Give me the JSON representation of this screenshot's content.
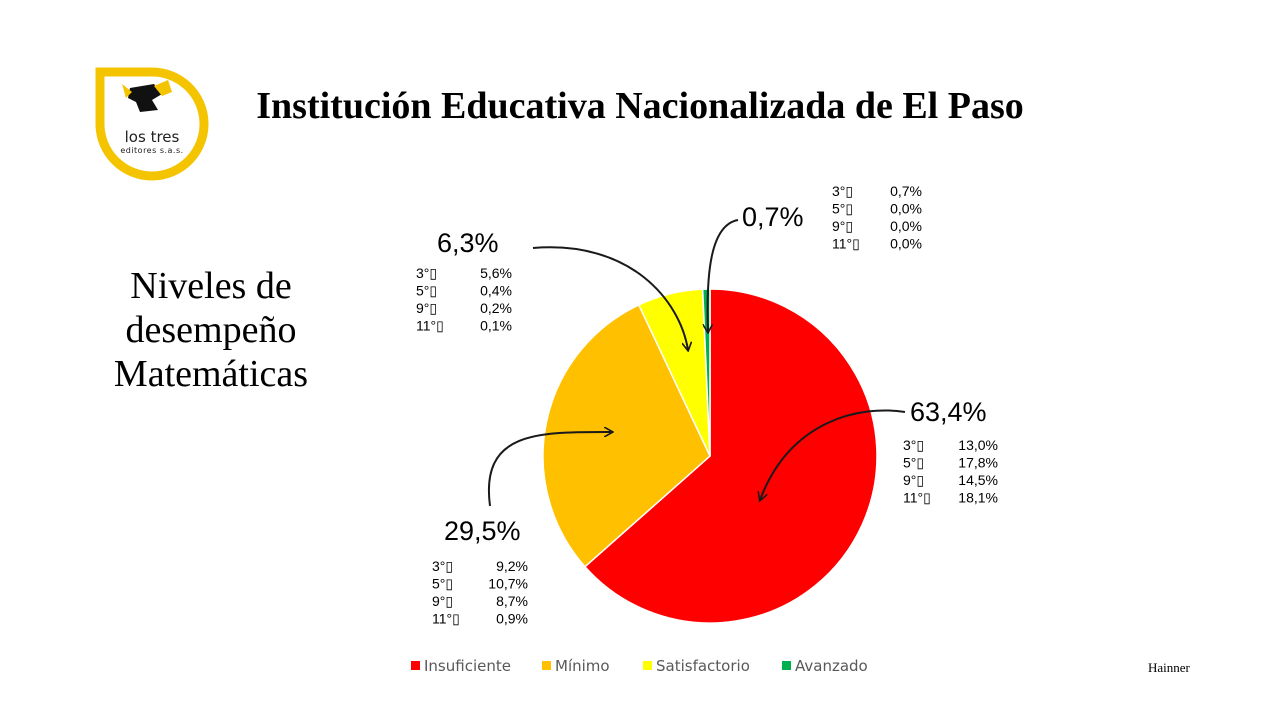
{
  "logo": {
    "line1": "los tres",
    "line2": "editores s.a.s."
  },
  "title": "Institución Educativa Nacionalizada de El Paso",
  "subtitle": "Niveles de desempeño Matemáticas",
  "credit": "Hainner",
  "chart_data": {
    "type": "pie",
    "slices": [
      {
        "name": "Insuficiente",
        "value": 63.4,
        "label": "63,4%",
        "color": "#ff0000",
        "breakdown": [
          [
            "3°▯",
            "13,0%"
          ],
          [
            "5°▯",
            "17,8%"
          ],
          [
            "9°▯",
            "14,5%"
          ],
          [
            "11°▯",
            "18,1%"
          ]
        ]
      },
      {
        "name": "Mínimo",
        "value": 29.5,
        "label": "29,5%",
        "color": "#ffc000",
        "breakdown": [
          [
            "3°▯",
            "9,2%"
          ],
          [
            "5°▯",
            "10,7%"
          ],
          [
            "9°▯",
            "8,7%"
          ],
          [
            "11°▯",
            "0,9%"
          ]
        ]
      },
      {
        "name": "Satisfactorio",
        "value": 6.3,
        "label": "6,3%",
        "color": "#ffff00",
        "breakdown": [
          [
            "3°▯",
            "5,6%"
          ],
          [
            "5°▯",
            "0,4%"
          ],
          [
            "9°▯",
            "0,2%"
          ],
          [
            "11°▯",
            "0,1%"
          ]
        ]
      },
      {
        "name": "Avanzado",
        "value": 0.7,
        "label": "0,7%",
        "color": "#00b050",
        "breakdown": [
          [
            "3°▯",
            "0,7%"
          ],
          [
            "5°▯",
            "0,0%"
          ],
          [
            "9°▯",
            "0,0%"
          ],
          [
            "11°▯",
            "0,0%"
          ]
        ]
      }
    ],
    "legend_position": "bottom"
  }
}
